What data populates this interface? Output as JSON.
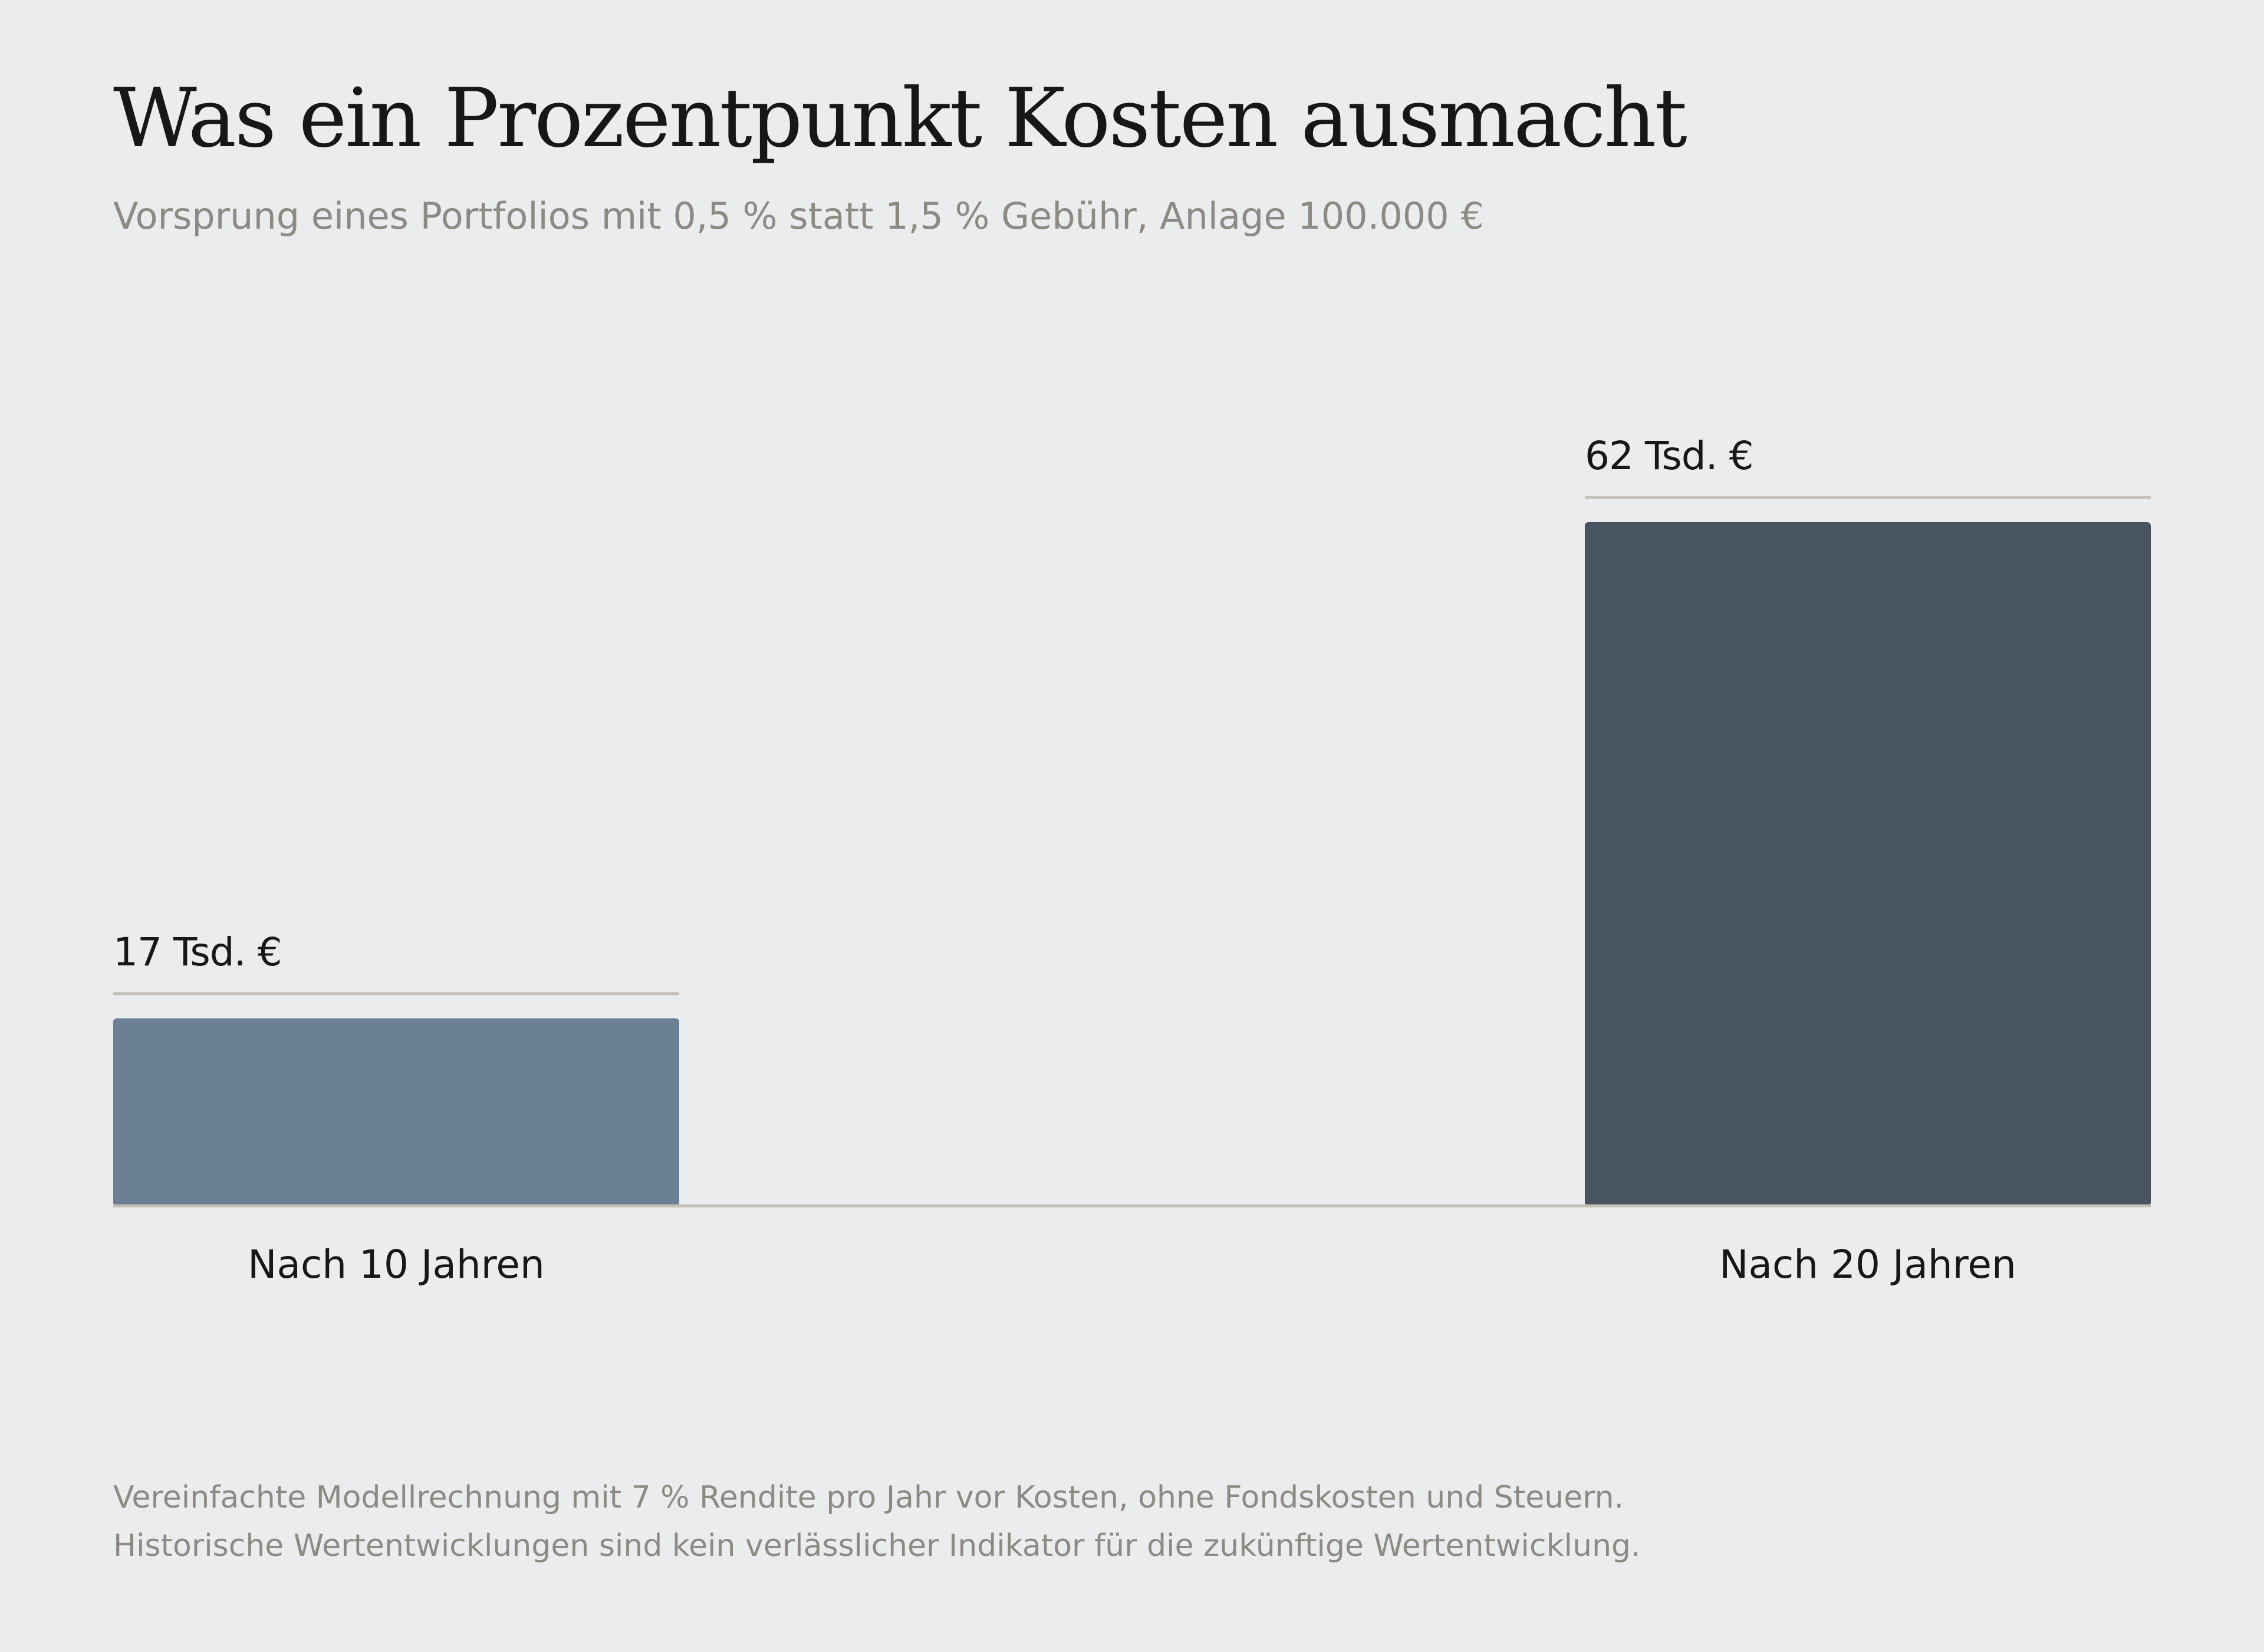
{
  "title": "Was ein Prozentpunkt Kosten ausmacht",
  "subtitle": "Vorsprung eines Portfolios mit 0,5 % statt 1,5 % Gebühr, Anlage 100.000 €",
  "footnote": {
    "line1": "Vereinfachte Modellrechnung mit 7 % Rendite pro Jahr vor Kosten, ohne Fondskosten und Steuern.",
    "line2": "Historische Wertentwicklungen sind kein verlässlicher Indikator für die zukünftige Wertentwicklung."
  },
  "chart_data": {
    "type": "bar",
    "title": "Was ein Prozentpunkt Kosten ausmacht",
    "subtitle": "Vorsprung eines Portfolios mit 0,5 % statt 1,5 % Gebühr, Anlage 100.000 €",
    "xlabel": "",
    "ylabel": "",
    "unit": "Tsd. €",
    "categories": [
      "Nach 10 Jahren",
      "Nach 20 Jahren"
    ],
    "values": [
      17,
      62
    ],
    "value_labels": [
      "17 Tsd. €",
      "62 Tsd. €"
    ],
    "colors": [
      "#6b8094",
      "#485460"
    ],
    "ylim": [
      0,
      62
    ],
    "grid": false,
    "legend": "none"
  }
}
